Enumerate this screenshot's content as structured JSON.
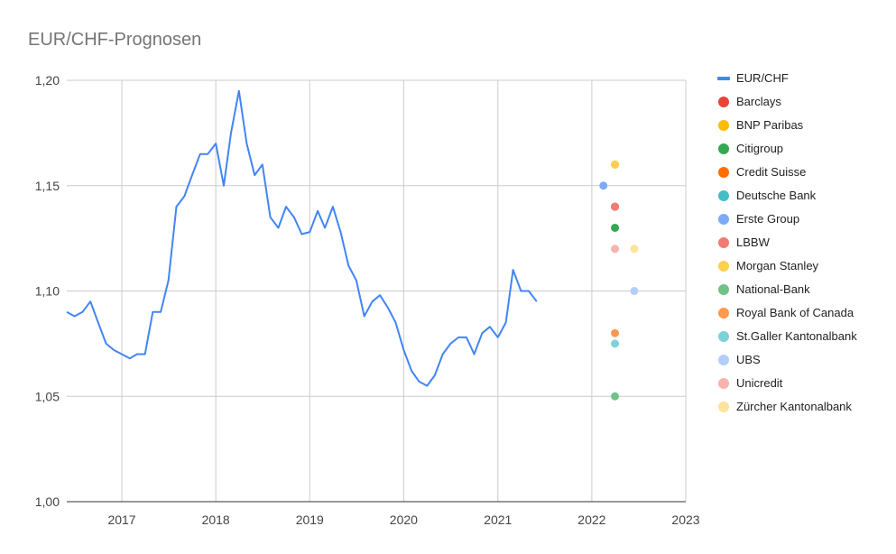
{
  "chart_data": {
    "type": "line",
    "title": "EUR/CHF-Prognosen",
    "x_ticks": [
      "2017",
      "2018",
      "2019",
      "2020",
      "2021",
      "2022",
      "2023"
    ],
    "y_ticks": [
      "1,00",
      "1,05",
      "1,10",
      "1,15",
      "1,20"
    ],
    "xlim": [
      "2016-06-01",
      "2023-01-01"
    ],
    "ylim": [
      1.0,
      1.2
    ],
    "grid": true,
    "legend_position": "right",
    "line_series": {
      "name": "EUR/CHF",
      "color": "#4285f4",
      "points": [
        [
          "2016-06-01",
          1.09
        ],
        [
          "2016-07-01",
          1.088
        ],
        [
          "2016-08-01",
          1.09
        ],
        [
          "2016-09-01",
          1.095
        ],
        [
          "2016-10-01",
          1.085
        ],
        [
          "2016-11-01",
          1.075
        ],
        [
          "2016-12-01",
          1.072
        ],
        [
          "2017-01-01",
          1.07
        ],
        [
          "2017-02-01",
          1.068
        ],
        [
          "2017-03-01",
          1.07
        ],
        [
          "2017-04-01",
          1.07
        ],
        [
          "2017-05-01",
          1.09
        ],
        [
          "2017-06-01",
          1.09
        ],
        [
          "2017-07-01",
          1.105
        ],
        [
          "2017-08-01",
          1.14
        ],
        [
          "2017-09-01",
          1.145
        ],
        [
          "2017-10-01",
          1.155
        ],
        [
          "2017-11-01",
          1.165
        ],
        [
          "2017-12-01",
          1.165
        ],
        [
          "2018-01-01",
          1.17
        ],
        [
          "2018-02-01",
          1.15
        ],
        [
          "2018-03-01",
          1.175
        ],
        [
          "2018-04-01",
          1.195
        ],
        [
          "2018-05-01",
          1.17
        ],
        [
          "2018-06-01",
          1.155
        ],
        [
          "2018-07-01",
          1.16
        ],
        [
          "2018-08-01",
          1.135
        ],
        [
          "2018-09-01",
          1.13
        ],
        [
          "2018-10-01",
          1.14
        ],
        [
          "2018-11-01",
          1.135
        ],
        [
          "2018-12-01",
          1.127
        ],
        [
          "2019-01-01",
          1.128
        ],
        [
          "2019-02-01",
          1.138
        ],
        [
          "2019-03-01",
          1.13
        ],
        [
          "2019-04-01",
          1.14
        ],
        [
          "2019-05-01",
          1.128
        ],
        [
          "2019-06-01",
          1.112
        ],
        [
          "2019-07-01",
          1.105
        ],
        [
          "2019-08-01",
          1.088
        ],
        [
          "2019-09-01",
          1.095
        ],
        [
          "2019-10-01",
          1.098
        ],
        [
          "2019-11-01",
          1.092
        ],
        [
          "2019-12-01",
          1.085
        ],
        [
          "2020-01-01",
          1.072
        ],
        [
          "2020-02-01",
          1.062
        ],
        [
          "2020-03-01",
          1.057
        ],
        [
          "2020-04-01",
          1.055
        ],
        [
          "2020-05-01",
          1.06
        ],
        [
          "2020-06-01",
          1.07
        ],
        [
          "2020-07-01",
          1.075
        ],
        [
          "2020-08-01",
          1.078
        ],
        [
          "2020-09-01",
          1.078
        ],
        [
          "2020-10-01",
          1.07
        ],
        [
          "2020-11-01",
          1.08
        ],
        [
          "2020-12-01",
          1.083
        ],
        [
          "2021-01-01",
          1.078
        ],
        [
          "2021-02-01",
          1.085
        ],
        [
          "2021-03-01",
          1.11
        ],
        [
          "2021-04-01",
          1.1
        ],
        [
          "2021-05-01",
          1.1
        ],
        [
          "2021-06-01",
          1.095
        ]
      ]
    },
    "forecasts": [
      {
        "name": "Barclays",
        "color": "#ea4335",
        "date": "2022-04-01",
        "value": 1.14
      },
      {
        "name": "BNP Paribas",
        "color": "#fbbc04",
        "date": "2022-04-01",
        "value": 1.16
      },
      {
        "name": "Citigroup",
        "color": "#34a853",
        "date": "2022-04-01",
        "value": 1.13
      },
      {
        "name": "Credit Suisse",
        "color": "#ff6d01",
        "date": null,
        "value": null
      },
      {
        "name": "Deutsche Bank",
        "color": "#46bdc6",
        "date": null,
        "value": null
      },
      {
        "name": "Erste Group",
        "color": "#7baaf7",
        "date": "2022-02-15",
        "value": 1.15
      },
      {
        "name": "LBBW",
        "color": "#f07b72",
        "date": "2022-04-01",
        "value": 1.14
      },
      {
        "name": "Morgan Stanley",
        "color": "#fcd04f",
        "date": "2022-04-01",
        "value": 1.16
      },
      {
        "name": "National-Bank",
        "color": "#71c287",
        "date": "2022-04-01",
        "value": 1.05
      },
      {
        "name": "Royal Bank of Canada",
        "color": "#ff994d",
        "date": "2022-04-01",
        "value": 1.08
      },
      {
        "name": "St.Galler Kantonalbank",
        "color": "#7ed1d7",
        "date": "2022-04-01",
        "value": 1.075
      },
      {
        "name": "UBS",
        "color": "#b3cefb",
        "date": "2022-06-15",
        "value": 1.1
      },
      {
        "name": "Unicredit",
        "color": "#f7b4ae",
        "date": "2022-04-01",
        "value": 1.12
      },
      {
        "name": "Zürcher Kantonalbank",
        "color": "#fde49b",
        "date": "2022-06-15",
        "value": 1.12
      }
    ]
  }
}
